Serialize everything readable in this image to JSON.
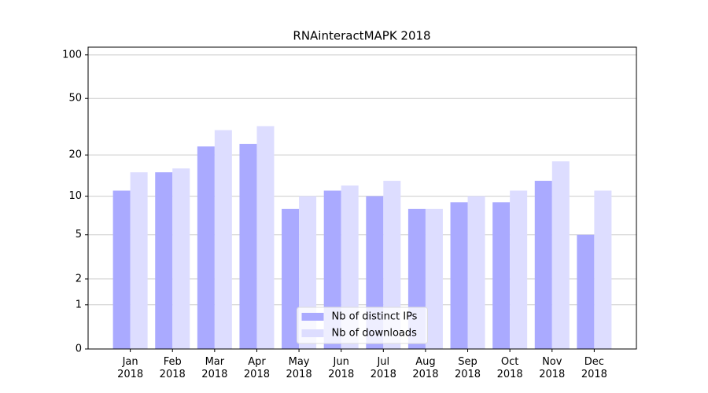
{
  "chart_data": {
    "type": "bar",
    "title": "RNAinteractMAPK 2018",
    "categories": [
      "Jan 2018",
      "Feb 2018",
      "Mar 2018",
      "Apr 2018",
      "May 2018",
      "Jun 2018",
      "Jul 2018",
      "Aug 2018",
      "Sep 2018",
      "Oct 2018",
      "Nov 2018",
      "Dec 2018"
    ],
    "series": [
      {
        "name": "Nb of distinct IPs",
        "color": "#aaaaff",
        "values": [
          11,
          15,
          23,
          24,
          8,
          11,
          10,
          8,
          9,
          9,
          13,
          5
        ]
      },
      {
        "name": "Nb of downloads",
        "color": "#ddddff",
        "values": [
          15,
          16,
          30,
          32,
          10,
          12,
          13,
          8,
          10,
          11,
          18,
          11
        ]
      }
    ],
    "yscale": "log1p",
    "ylim": [
      0,
      113
    ],
    "yticks": [
      0,
      1,
      2,
      5,
      10,
      20,
      50,
      100
    ],
    "grid": true,
    "legend": "lower center"
  }
}
